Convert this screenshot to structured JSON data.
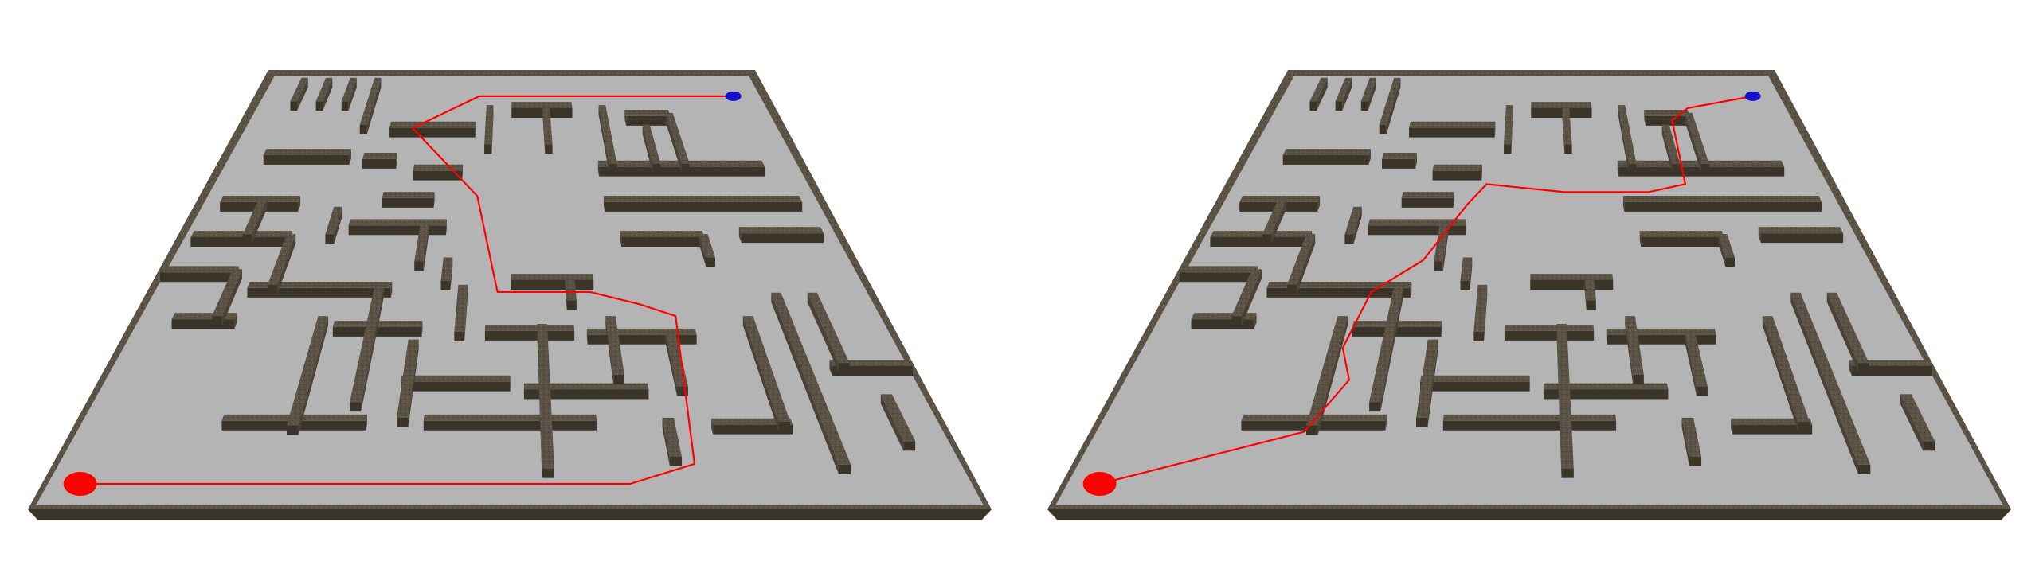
{
  "scene": {
    "board_count": 2,
    "colors": {
      "background": "#ffffff",
      "floor": "#b4b4b4",
      "wall_top": "#5a5244",
      "wall_side": "#4a4236",
      "wall_front": "#3b3429",
      "path": "#ff0000",
      "start_marker": "#ff0000",
      "goal_marker": "#1111cc"
    },
    "icons": {
      "start": "red-ellipse-start-marker",
      "goal": "blue-ellipse-goal-marker"
    }
  },
  "boards": [
    {
      "name": "maze-board-left",
      "path_label": "longer-path"
    },
    {
      "name": "maze-board-right",
      "path_label": "shorter-path"
    }
  ]
}
